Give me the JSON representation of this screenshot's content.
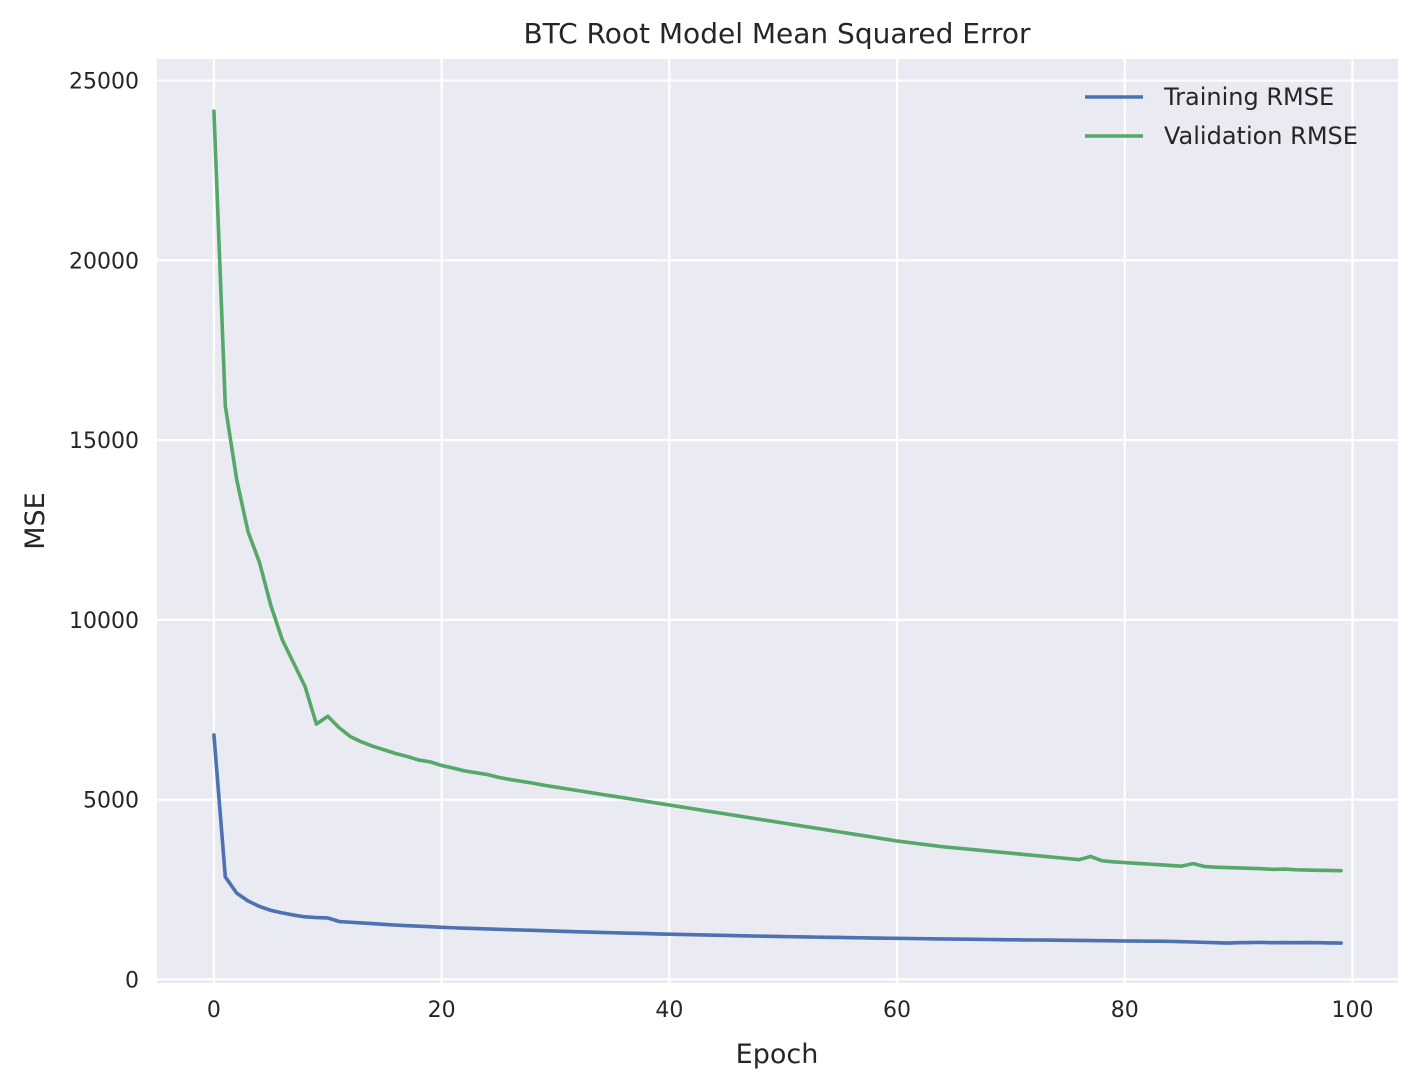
{
  "chart_data": {
    "type": "line",
    "title": "BTC Root Model Mean Squared Error",
    "xlabel": "Epoch",
    "ylabel": "MSE",
    "xlim": [
      -5,
      104
    ],
    "ylim": [
      -100,
      25600
    ],
    "x_ticks": [
      0,
      20,
      40,
      60,
      80,
      100
    ],
    "y_ticks": [
      0,
      5000,
      10000,
      15000,
      20000,
      25000
    ],
    "grid": true,
    "legend_position": "top-right",
    "background_color": "#eaeaf2",
    "x": [
      0,
      1,
      2,
      3,
      4,
      5,
      6,
      7,
      8,
      9,
      10,
      11,
      12,
      13,
      14,
      15,
      16,
      17,
      18,
      19,
      20,
      21,
      22,
      23,
      24,
      25,
      26,
      27,
      28,
      29,
      30,
      31,
      32,
      33,
      34,
      35,
      36,
      37,
      38,
      39,
      40,
      41,
      42,
      43,
      44,
      45,
      46,
      47,
      48,
      49,
      50,
      51,
      52,
      53,
      54,
      55,
      56,
      57,
      58,
      59,
      60,
      61,
      62,
      63,
      64,
      65,
      66,
      67,
      68,
      69,
      70,
      71,
      72,
      73,
      74,
      75,
      76,
      77,
      78,
      79,
      80,
      81,
      82,
      83,
      84,
      85,
      86,
      87,
      88,
      89,
      90,
      91,
      92,
      93,
      94,
      95,
      96,
      97,
      98,
      99
    ],
    "series": [
      {
        "name": "Training RMSE",
        "color": "#4c72b0",
        "values": [
          6800,
          2850,
          2400,
          2180,
          2030,
          1920,
          1850,
          1790,
          1740,
          1720,
          1710,
          1610,
          1590,
          1570,
          1550,
          1530,
          1510,
          1495,
          1480,
          1465,
          1450,
          1437,
          1425,
          1414,
          1404,
          1394,
          1384,
          1374,
          1364,
          1354,
          1344,
          1334,
          1325,
          1316,
          1307,
          1298,
          1290,
          1282,
          1274,
          1266,
          1258,
          1250,
          1243,
          1236,
          1229,
          1222,
          1216,
          1210,
          1204,
          1198,
          1192,
          1186,
          1181,
          1176,
          1171,
          1166,
          1161,
          1156,
          1151,
          1146,
          1142,
          1138,
          1134,
          1130,
          1126,
          1122,
          1118,
          1114,
          1110,
          1106,
          1102,
          1099,
          1096,
          1093,
          1090,
          1087,
          1084,
          1080,
          1076,
          1072,
          1068,
          1066,
          1064,
          1062,
          1058,
          1050,
          1040,
          1030,
          1020,
          1010,
          1020,
          1025,
          1030,
          1020,
          1025,
          1020,
          1025,
          1020,
          1015,
          1010
        ]
      },
      {
        "name": "Validation RMSE",
        "color": "#55a868",
        "values": [
          24150,
          15950,
          13900,
          12450,
          11600,
          10400,
          9450,
          8800,
          8150,
          7100,
          7320,
          7000,
          6750,
          6600,
          6480,
          6380,
          6280,
          6200,
          6100,
          6050,
          5950,
          5880,
          5800,
          5750,
          5700,
          5620,
          5560,
          5510,
          5460,
          5400,
          5350,
          5300,
          5250,
          5200,
          5150,
          5100,
          5050,
          5000,
          4950,
          4900,
          4850,
          4800,
          4750,
          4700,
          4650,
          4600,
          4550,
          4500,
          4450,
          4400,
          4350,
          4300,
          4250,
          4200,
          4150,
          4100,
          4050,
          4000,
          3950,
          3900,
          3850,
          3810,
          3770,
          3730,
          3690,
          3660,
          3630,
          3600,
          3570,
          3540,
          3510,
          3480,
          3450,
          3420,
          3390,
          3360,
          3330,
          3420,
          3300,
          3270,
          3250,
          3230,
          3210,
          3190,
          3170,
          3150,
          3220,
          3140,
          3120,
          3110,
          3100,
          3090,
          3080,
          3060,
          3070,
          3050,
          3040,
          3035,
          3030,
          3025
        ]
      }
    ]
  }
}
